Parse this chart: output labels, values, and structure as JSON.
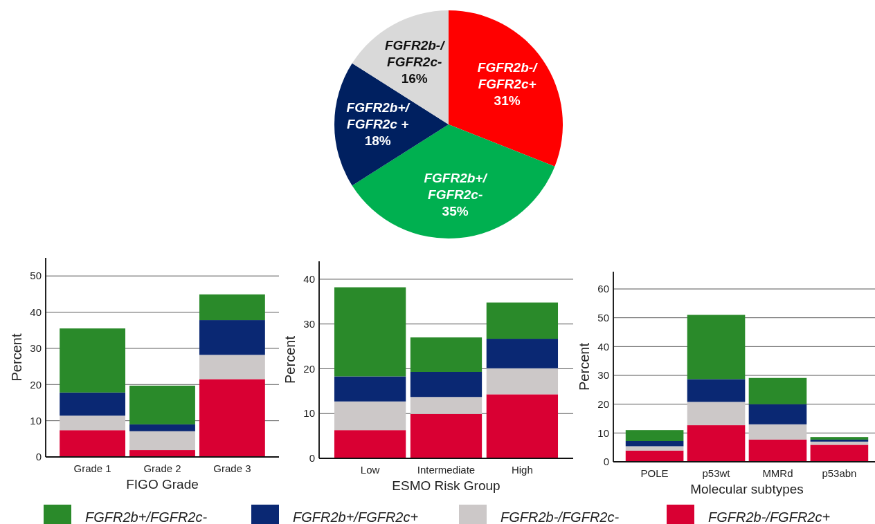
{
  "chart_data": [
    {
      "type": "pie",
      "categories": [
        "FGFR2b-/FGFR2c+",
        "FGFR2b+/FGFR2c-",
        "FGFR2b+/FGFR2c +",
        "FGFR2b-/FGFR2c-"
      ],
      "values": [
        31,
        35,
        18,
        16
      ],
      "colors": [
        "#ff0000",
        "#00b050",
        "#002060",
        "#d9d9d9"
      ],
      "value_labels": [
        "31%",
        "35%",
        "18%",
        "16%"
      ]
    },
    {
      "type": "bar",
      "stacked": true,
      "categories": [
        "Grade 1",
        "Grade 2",
        "Grade 3"
      ],
      "xlabel": "FIGO Grade",
      "ylabel": "Percent",
      "ylim": [
        0,
        55
      ],
      "yticks": [
        0,
        10,
        20,
        30,
        40,
        50
      ],
      "grid": "y",
      "series": [
        {
          "color": "#d90033",
          "values": [
            7.4,
            1.9,
            21.5
          ]
        },
        {
          "color": "#ccc8c8",
          "values": [
            4.0,
            5.2,
            6.7
          ]
        },
        {
          "color": "#0a2873",
          "values": [
            6.4,
            1.9,
            9.6
          ]
        },
        {
          "color": "#2a8a2a",
          "values": [
            17.7,
            10.7,
            7.1
          ]
        }
      ]
    },
    {
      "type": "bar",
      "stacked": true,
      "categories": [
        "Low",
        "Intermediate",
        "High"
      ],
      "xlabel": "ESMO Risk Group",
      "ylabel": "Percent",
      "ylim": [
        0,
        44
      ],
      "yticks": [
        0,
        10,
        20,
        30,
        40
      ],
      "grid": "y",
      "legend": "bottom",
      "series": [
        {
          "name": "FGFR2b-/FGFR2c+",
          "color": "#d90033",
          "values": [
            6.3,
            9.9,
            14.3
          ]
        },
        {
          "name": "FGFR2b-/FGFR2c-",
          "color": "#ccc8c8",
          "values": [
            6.4,
            3.8,
            5.8
          ]
        },
        {
          "name": "FGFR2b+/FGFR2c+",
          "color": "#0a2873",
          "values": [
            5.6,
            5.6,
            6.6
          ]
        },
        {
          "name": "FGFR2b+/FGFR2c-",
          "color": "#2a8a2a",
          "values": [
            19.9,
            7.7,
            8.1
          ]
        }
      ]
    },
    {
      "type": "bar",
      "stacked": true,
      "categories": [
        "POLE",
        "p53wt",
        "MMRd",
        "p53abn"
      ],
      "xlabel": "Molecular subtypes",
      "ylabel": "Percent",
      "ylim": [
        0,
        66
      ],
      "yticks": [
        0,
        10,
        20,
        30,
        40,
        50,
        60
      ],
      "grid": "y",
      "series": [
        {
          "color": "#d90033",
          "values": [
            3.9,
            12.7,
            7.7,
            5.9
          ]
        },
        {
          "color": "#ccc8c8",
          "values": [
            1.5,
            8.1,
            5.3,
            1.1
          ]
        },
        {
          "color": "#0a2873",
          "values": [
            1.8,
            7.9,
            7.0,
            0.7
          ]
        },
        {
          "color": "#2a8a2a",
          "values": [
            3.8,
            22.3,
            9.1,
            0.9
          ]
        }
      ]
    }
  ]
}
